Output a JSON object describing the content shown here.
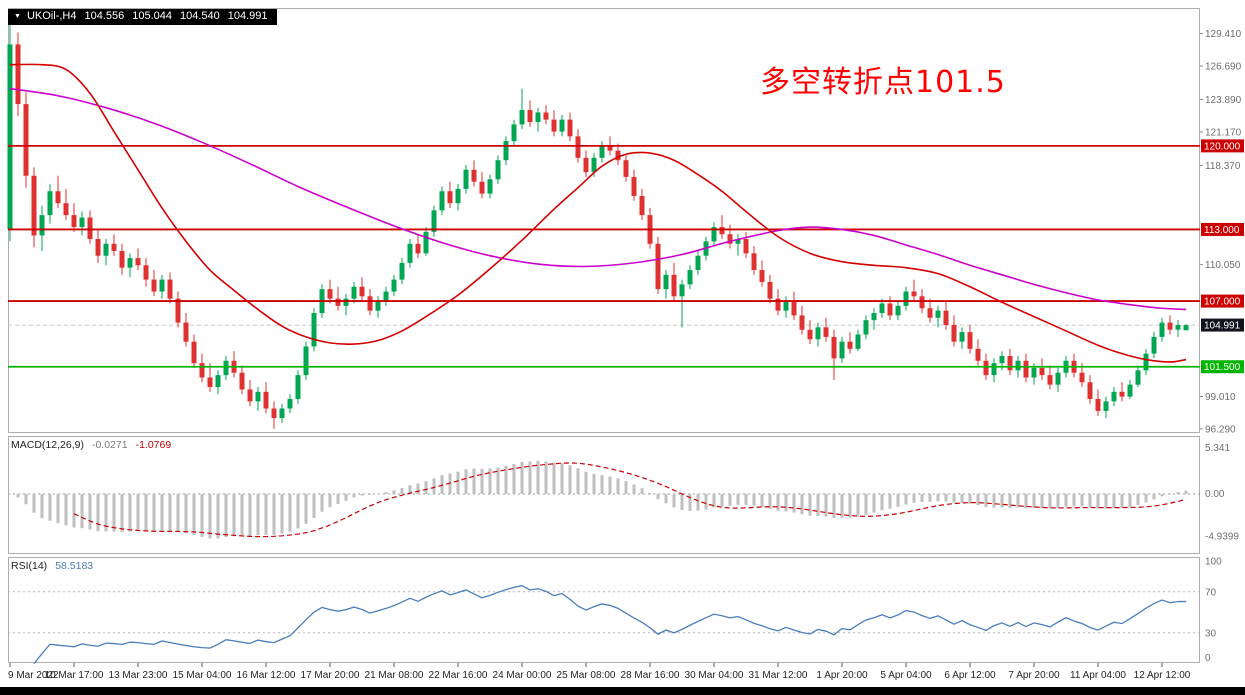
{
  "header": {
    "symbol_tf": "UKOil-,H4",
    "open": "104.556",
    "high": "105.044",
    "low": "104.540",
    "close": "104.991"
  },
  "indicators": {
    "macd": {
      "name": "MACD(12,26,9)",
      "main_value": "-0.0271",
      "signal_value": "-1.0769"
    },
    "rsi": {
      "name": "RSI(14)",
      "value": "58.5183"
    }
  },
  "chart_data": {
    "type": "candlestick",
    "symbol": "UKOil-",
    "timeframe": "H4",
    "title": "UKOil-,H4",
    "annotation": {
      "text": "多空转折点101.5",
      "color": "#FF0000"
    },
    "y_axis": {
      "price_range": [
        95.95,
        131.55
      ],
      "ticks": [
        {
          "label": "129.410",
          "value": 129.41
        },
        {
          "label": "126.690",
          "value": 126.69
        },
        {
          "label": "123.890",
          "value": 123.89
        },
        {
          "label": "121.170",
          "value": 121.17
        },
        {
          "label": "118.370",
          "value": 118.37
        },
        {
          "label": "110.050",
          "value": 110.05
        },
        {
          "label": "99.010",
          "value": 99.01
        },
        {
          "label": "96.290",
          "value": 96.29
        }
      ]
    },
    "x_axis": {
      "labels": [
        "9 Mar 2022",
        "10 Mar 17:00",
        "13 Mar 23:00",
        "15 Mar 04:00",
        "16 Mar 12:00",
        "17 Mar 20:00",
        "21 Mar 08:00",
        "22 Mar 16:00",
        "24 Mar 00:00",
        "25 Mar 08:00",
        "28 Mar 16:00",
        "30 Mar 04:00",
        "31 Mar 12:00",
        "1 Apr 20:00",
        "5 Apr 04:00",
        "6 Apr 12:00",
        "7 Apr 20:00",
        "11 Apr 04:00",
        "12 Apr 12:00"
      ],
      "indices": [
        0,
        8,
        16,
        24,
        32,
        40,
        48,
        56,
        64,
        72,
        80,
        88,
        96,
        104,
        112,
        120,
        128,
        136,
        144
      ]
    },
    "levels": [
      {
        "label": "120.000",
        "value": 120.0,
        "color": "#CC0000"
      },
      {
        "label": "113.000",
        "value": 113.0,
        "color": "#CC0000"
      },
      {
        "label": "107.000",
        "value": 107.0,
        "color": "#CC0000"
      },
      {
        "label": "101.500",
        "value": 101.5,
        "color": "#00B400"
      }
    ],
    "current_price": {
      "label": "104.991",
      "value": 104.991,
      "bg": "#13131F"
    },
    "colors": {
      "up": "#00A651",
      "down": "#E03131"
    },
    "candles": [
      [
        113.0,
        131.4,
        112.0,
        128.5
      ],
      [
        128.5,
        129.5,
        122.5,
        123.5
      ],
      [
        123.5,
        124.5,
        116.5,
        117.5
      ],
      [
        117.5,
        118.2,
        111.5,
        112.5
      ],
      [
        112.5,
        115.0,
        111.2,
        114.2
      ],
      [
        114.2,
        116.8,
        113.5,
        116.2
      ],
      [
        116.2,
        117.5,
        114.8,
        115.2
      ],
      [
        115.2,
        116.4,
        113.8,
        114.2
      ],
      [
        114.2,
        115.2,
        112.8,
        113.2
      ],
      [
        113.2,
        114.5,
        112.5,
        114.0
      ],
      [
        114.0,
        114.6,
        111.8,
        112.2
      ],
      [
        112.2,
        113.0,
        110.2,
        110.8
      ],
      [
        110.8,
        112.2,
        110.0,
        111.8
      ],
      [
        111.8,
        112.6,
        110.8,
        111.2
      ],
      [
        111.2,
        111.8,
        109.2,
        109.8
      ],
      [
        109.8,
        111.0,
        109.0,
        110.6
      ],
      [
        110.6,
        111.4,
        109.6,
        110.0
      ],
      [
        110.0,
        110.6,
        108.2,
        108.8
      ],
      [
        108.8,
        109.6,
        107.4,
        107.8
      ],
      [
        107.8,
        109.2,
        107.2,
        108.8
      ],
      [
        108.8,
        109.4,
        106.8,
        107.2
      ],
      [
        107.2,
        107.8,
        104.8,
        105.2
      ],
      [
        105.2,
        106.0,
        103.2,
        103.6
      ],
      [
        103.6,
        104.2,
        101.4,
        101.8
      ],
      [
        101.8,
        102.6,
        100.2,
        100.6
      ],
      [
        100.6,
        101.8,
        99.4,
        99.8
      ],
      [
        99.8,
        101.2,
        99.2,
        100.8
      ],
      [
        100.8,
        102.4,
        100.4,
        102.0
      ],
      [
        102.0,
        102.8,
        100.6,
        101.0
      ],
      [
        101.0,
        101.6,
        99.2,
        99.6
      ],
      [
        99.6,
        100.4,
        98.2,
        98.6
      ],
      [
        98.6,
        99.8,
        97.8,
        99.4
      ],
      [
        99.4,
        100.2,
        97.6,
        98.0
      ],
      [
        98.0,
        98.6,
        96.3,
        97.2
      ],
      [
        97.2,
        98.4,
        96.8,
        98.0
      ],
      [
        98.0,
        99.2,
        97.6,
        98.8
      ],
      [
        98.8,
        101.2,
        98.4,
        100.8
      ],
      [
        100.8,
        103.6,
        100.4,
        103.2
      ],
      [
        103.2,
        106.4,
        102.8,
        106.0
      ],
      [
        106.0,
        108.4,
        105.6,
        108.0
      ],
      [
        108.0,
        108.8,
        106.8,
        107.2
      ],
      [
        107.2,
        108.2,
        106.2,
        106.6
      ],
      [
        106.6,
        107.6,
        105.8,
        107.2
      ],
      [
        107.2,
        108.6,
        106.8,
        108.2
      ],
      [
        108.2,
        109.0,
        107.0,
        107.4
      ],
      [
        107.4,
        108.0,
        105.8,
        106.2
      ],
      [
        106.2,
        107.4,
        105.6,
        107.0
      ],
      [
        107.0,
        108.2,
        106.6,
        107.8
      ],
      [
        107.8,
        109.2,
        107.4,
        108.8
      ],
      [
        108.8,
        110.6,
        108.4,
        110.2
      ],
      [
        110.2,
        112.2,
        109.8,
        111.8
      ],
      [
        111.8,
        112.6,
        110.6,
        111.0
      ],
      [
        111.0,
        113.2,
        110.8,
        112.8
      ],
      [
        112.8,
        115.0,
        112.4,
        114.6
      ],
      [
        114.6,
        116.6,
        114.2,
        116.2
      ],
      [
        116.2,
        117.0,
        114.8,
        115.2
      ],
      [
        115.2,
        116.8,
        114.6,
        116.4
      ],
      [
        116.4,
        118.4,
        116.0,
        118.0
      ],
      [
        118.0,
        118.8,
        116.6,
        117.0
      ],
      [
        117.0,
        117.8,
        115.6,
        116.0
      ],
      [
        116.0,
        117.6,
        115.6,
        117.2
      ],
      [
        117.2,
        119.2,
        116.8,
        118.8
      ],
      [
        118.8,
        120.8,
        118.4,
        120.4
      ],
      [
        120.4,
        122.2,
        120.0,
        121.8
      ],
      [
        121.8,
        124.8,
        121.4,
        123.0
      ],
      [
        123.0,
        123.8,
        121.6,
        122.0
      ],
      [
        122.0,
        123.2,
        121.2,
        122.8
      ],
      [
        122.8,
        123.4,
        121.8,
        122.2
      ],
      [
        122.2,
        123.0,
        120.8,
        121.2
      ],
      [
        121.2,
        122.6,
        120.8,
        122.2
      ],
      [
        122.2,
        122.8,
        120.4,
        120.8
      ],
      [
        120.8,
        121.4,
        118.6,
        119.0
      ],
      [
        119.0,
        119.6,
        117.4,
        117.8
      ],
      [
        117.8,
        119.4,
        117.4,
        119.0
      ],
      [
        119.0,
        120.4,
        118.6,
        120.0
      ],
      [
        120.0,
        120.8,
        119.2,
        119.6
      ],
      [
        119.6,
        120.2,
        118.4,
        118.8
      ],
      [
        118.8,
        119.2,
        117.0,
        117.4
      ],
      [
        117.4,
        118.0,
        115.4,
        115.8
      ],
      [
        115.8,
        116.4,
        113.8,
        114.2
      ],
      [
        114.2,
        114.8,
        111.4,
        111.8
      ],
      [
        111.8,
        112.4,
        107.6,
        108.0
      ],
      [
        108.0,
        109.6,
        107.2,
        109.2
      ],
      [
        109.2,
        110.2,
        107.0,
        107.4
      ],
      [
        107.4,
        108.8,
        104.8,
        108.4
      ],
      [
        108.4,
        110.0,
        108.0,
        109.6
      ],
      [
        109.6,
        111.2,
        109.2,
        110.8
      ],
      [
        110.8,
        112.4,
        110.4,
        112.0
      ],
      [
        112.0,
        113.6,
        111.6,
        113.2
      ],
      [
        113.2,
        114.2,
        112.2,
        112.6
      ],
      [
        112.6,
        113.4,
        111.4,
        111.8
      ],
      [
        111.8,
        112.6,
        110.8,
        112.2
      ],
      [
        112.2,
        112.8,
        110.6,
        111.0
      ],
      [
        111.0,
        111.6,
        109.2,
        109.6
      ],
      [
        109.6,
        110.4,
        108.2,
        108.6
      ],
      [
        108.6,
        109.2,
        106.8,
        107.2
      ],
      [
        107.2,
        108.0,
        105.8,
        106.2
      ],
      [
        106.2,
        107.4,
        105.6,
        107.0
      ],
      [
        107.0,
        107.8,
        105.4,
        105.8
      ],
      [
        105.8,
        106.6,
        104.2,
        104.6
      ],
      [
        104.6,
        105.4,
        103.4,
        103.8
      ],
      [
        103.8,
        105.2,
        103.2,
        104.8
      ],
      [
        104.8,
        105.6,
        103.6,
        104.0
      ],
      [
        104.0,
        104.6,
        100.4,
        102.2
      ],
      [
        102.2,
        104.0,
        101.8,
        103.6
      ],
      [
        103.6,
        104.4,
        102.6,
        103.0
      ],
      [
        103.0,
        104.6,
        102.8,
        104.2
      ],
      [
        104.2,
        105.8,
        103.8,
        105.4
      ],
      [
        105.4,
        106.4,
        104.6,
        106.0
      ],
      [
        106.0,
        107.2,
        105.6,
        106.8
      ],
      [
        106.8,
        107.4,
        105.4,
        105.8
      ],
      [
        105.8,
        107.0,
        105.4,
        106.6
      ],
      [
        106.6,
        108.2,
        106.2,
        107.8
      ],
      [
        107.8,
        108.8,
        107.0,
        107.4
      ],
      [
        107.4,
        108.0,
        106.0,
        106.4
      ],
      [
        106.4,
        107.2,
        105.2,
        105.6
      ],
      [
        105.6,
        106.6,
        104.8,
        106.2
      ],
      [
        106.2,
        107.0,
        104.6,
        105.0
      ],
      [
        105.0,
        105.8,
        103.2,
        103.6
      ],
      [
        103.6,
        104.8,
        103.0,
        104.4
      ],
      [
        104.4,
        105.0,
        102.6,
        103.0
      ],
      [
        103.0,
        103.8,
        101.6,
        102.0
      ],
      [
        102.0,
        102.6,
        100.4,
        100.8
      ],
      [
        100.8,
        102.2,
        100.2,
        101.8
      ],
      [
        101.8,
        102.8,
        101.2,
        102.4
      ],
      [
        102.4,
        103.0,
        100.8,
        101.2
      ],
      [
        101.2,
        102.4,
        100.6,
        102.0
      ],
      [
        102.0,
        102.6,
        100.2,
        100.6
      ],
      [
        100.6,
        101.8,
        100.0,
        101.4
      ],
      [
        101.4,
        102.2,
        100.4,
        100.8
      ],
      [
        100.8,
        101.6,
        99.6,
        100.0
      ],
      [
        100.0,
        101.4,
        99.4,
        101.0
      ],
      [
        101.0,
        102.4,
        100.6,
        102.0
      ],
      [
        102.0,
        102.6,
        100.6,
        101.0
      ],
      [
        101.0,
        101.8,
        99.8,
        100.2
      ],
      [
        100.2,
        100.8,
        98.4,
        98.8
      ],
      [
        98.8,
        99.6,
        97.4,
        97.8
      ],
      [
        97.8,
        99.0,
        97.2,
        98.6
      ],
      [
        98.6,
        99.8,
        98.2,
        99.4
      ],
      [
        99.4,
        100.2,
        98.6,
        99.0
      ],
      [
        99.0,
        100.4,
        98.8,
        100.0
      ],
      [
        100.0,
        101.6,
        99.8,
        101.2
      ],
      [
        101.2,
        103.0,
        100.8,
        102.6
      ],
      [
        102.6,
        104.4,
        102.2,
        104.0
      ],
      [
        104.0,
        105.6,
        103.6,
        105.2
      ],
      [
        105.2,
        105.8,
        104.2,
        104.6
      ],
      [
        104.6,
        105.4,
        104.0,
        105.0
      ],
      [
        104.556,
        105.044,
        104.54,
        104.991
      ]
    ],
    "ma_fast": {
      "name": "fast-ma",
      "color": "#D40000",
      "points": [
        [
          0,
          126.8
        ],
        [
          4,
          126.8
        ],
        [
          7,
          126.4
        ],
        [
          10,
          124.4
        ],
        [
          13,
          121.2
        ],
        [
          16,
          118.0
        ],
        [
          19,
          114.8
        ],
        [
          22,
          112.0
        ],
        [
          25,
          109.6
        ],
        [
          28,
          107.9
        ],
        [
          31,
          106.3
        ],
        [
          34,
          104.9
        ],
        [
          37,
          104.0
        ],
        [
          40,
          103.5
        ],
        [
          43,
          103.4
        ],
        [
          46,
          103.7
        ],
        [
          49,
          104.5
        ],
        [
          52,
          105.7
        ],
        [
          56,
          107.5
        ],
        [
          60,
          109.7
        ],
        [
          64,
          112.1
        ],
        [
          68,
          114.7
        ],
        [
          71,
          116.5
        ],
        [
          74,
          118.3
        ],
        [
          77,
          119.3
        ],
        [
          80,
          119.4
        ],
        [
          83,
          118.8
        ],
        [
          86,
          117.6
        ],
        [
          89,
          116.2
        ],
        [
          92,
          114.5
        ],
        [
          96,
          112.4
        ],
        [
          100,
          111.0
        ],
        [
          104,
          110.3
        ],
        [
          108,
          110.0
        ],
        [
          112,
          109.8
        ],
        [
          116,
          109.3
        ],
        [
          120,
          108.2
        ],
        [
          124,
          106.9
        ],
        [
          128,
          105.7
        ],
        [
          132,
          104.5
        ],
        [
          136,
          103.3
        ],
        [
          139,
          102.6
        ],
        [
          142,
          102.1
        ],
        [
          145,
          101.9
        ],
        [
          147,
          102.1
        ]
      ]
    },
    "ma_slow": {
      "name": "slow-ma",
      "color": "#CC00CC",
      "points": [
        [
          0,
          124.8
        ],
        [
          6,
          124.2
        ],
        [
          12,
          123.2
        ],
        [
          18,
          121.9
        ],
        [
          24,
          120.3
        ],
        [
          30,
          118.5
        ],
        [
          36,
          116.6
        ],
        [
          42,
          114.9
        ],
        [
          48,
          113.3
        ],
        [
          54,
          111.9
        ],
        [
          60,
          110.8
        ],
        [
          66,
          110.1
        ],
        [
          72,
          109.9
        ],
        [
          78,
          110.2
        ],
        [
          84,
          110.9
        ],
        [
          90,
          112.0
        ],
        [
          96,
          112.9
        ],
        [
          100,
          113.2
        ],
        [
          104,
          113.0
        ],
        [
          108,
          112.5
        ],
        [
          112,
          111.7
        ],
        [
          116,
          110.9
        ],
        [
          120,
          110.0
        ],
        [
          124,
          109.2
        ],
        [
          128,
          108.4
        ],
        [
          132,
          107.7
        ],
        [
          136,
          107.1
        ],
        [
          140,
          106.7
        ],
        [
          144,
          106.4
        ],
        [
          147,
          106.3
        ]
      ]
    },
    "macd_panel": {
      "params": [
        12,
        26,
        9
      ],
      "hist_color": "#BFBFBF",
      "signal_color": "#CC0000",
      "ticks": [
        {
          "label": "5.341",
          "value": 5.341
        },
        {
          "label": "0.00",
          "value": 0
        },
        {
          "label": "-4.9399",
          "value": -4.9399
        }
      ]
    },
    "rsi_panel": {
      "period": 14,
      "color": "#4A7EBB",
      "levels": [
        70,
        30
      ],
      "ticks": [
        {
          "label": "100",
          "value": 100
        },
        {
          "label": "70",
          "value": 70
        },
        {
          "label": "30",
          "value": 30
        },
        {
          "label": "0",
          "value": 0
        }
      ]
    }
  }
}
